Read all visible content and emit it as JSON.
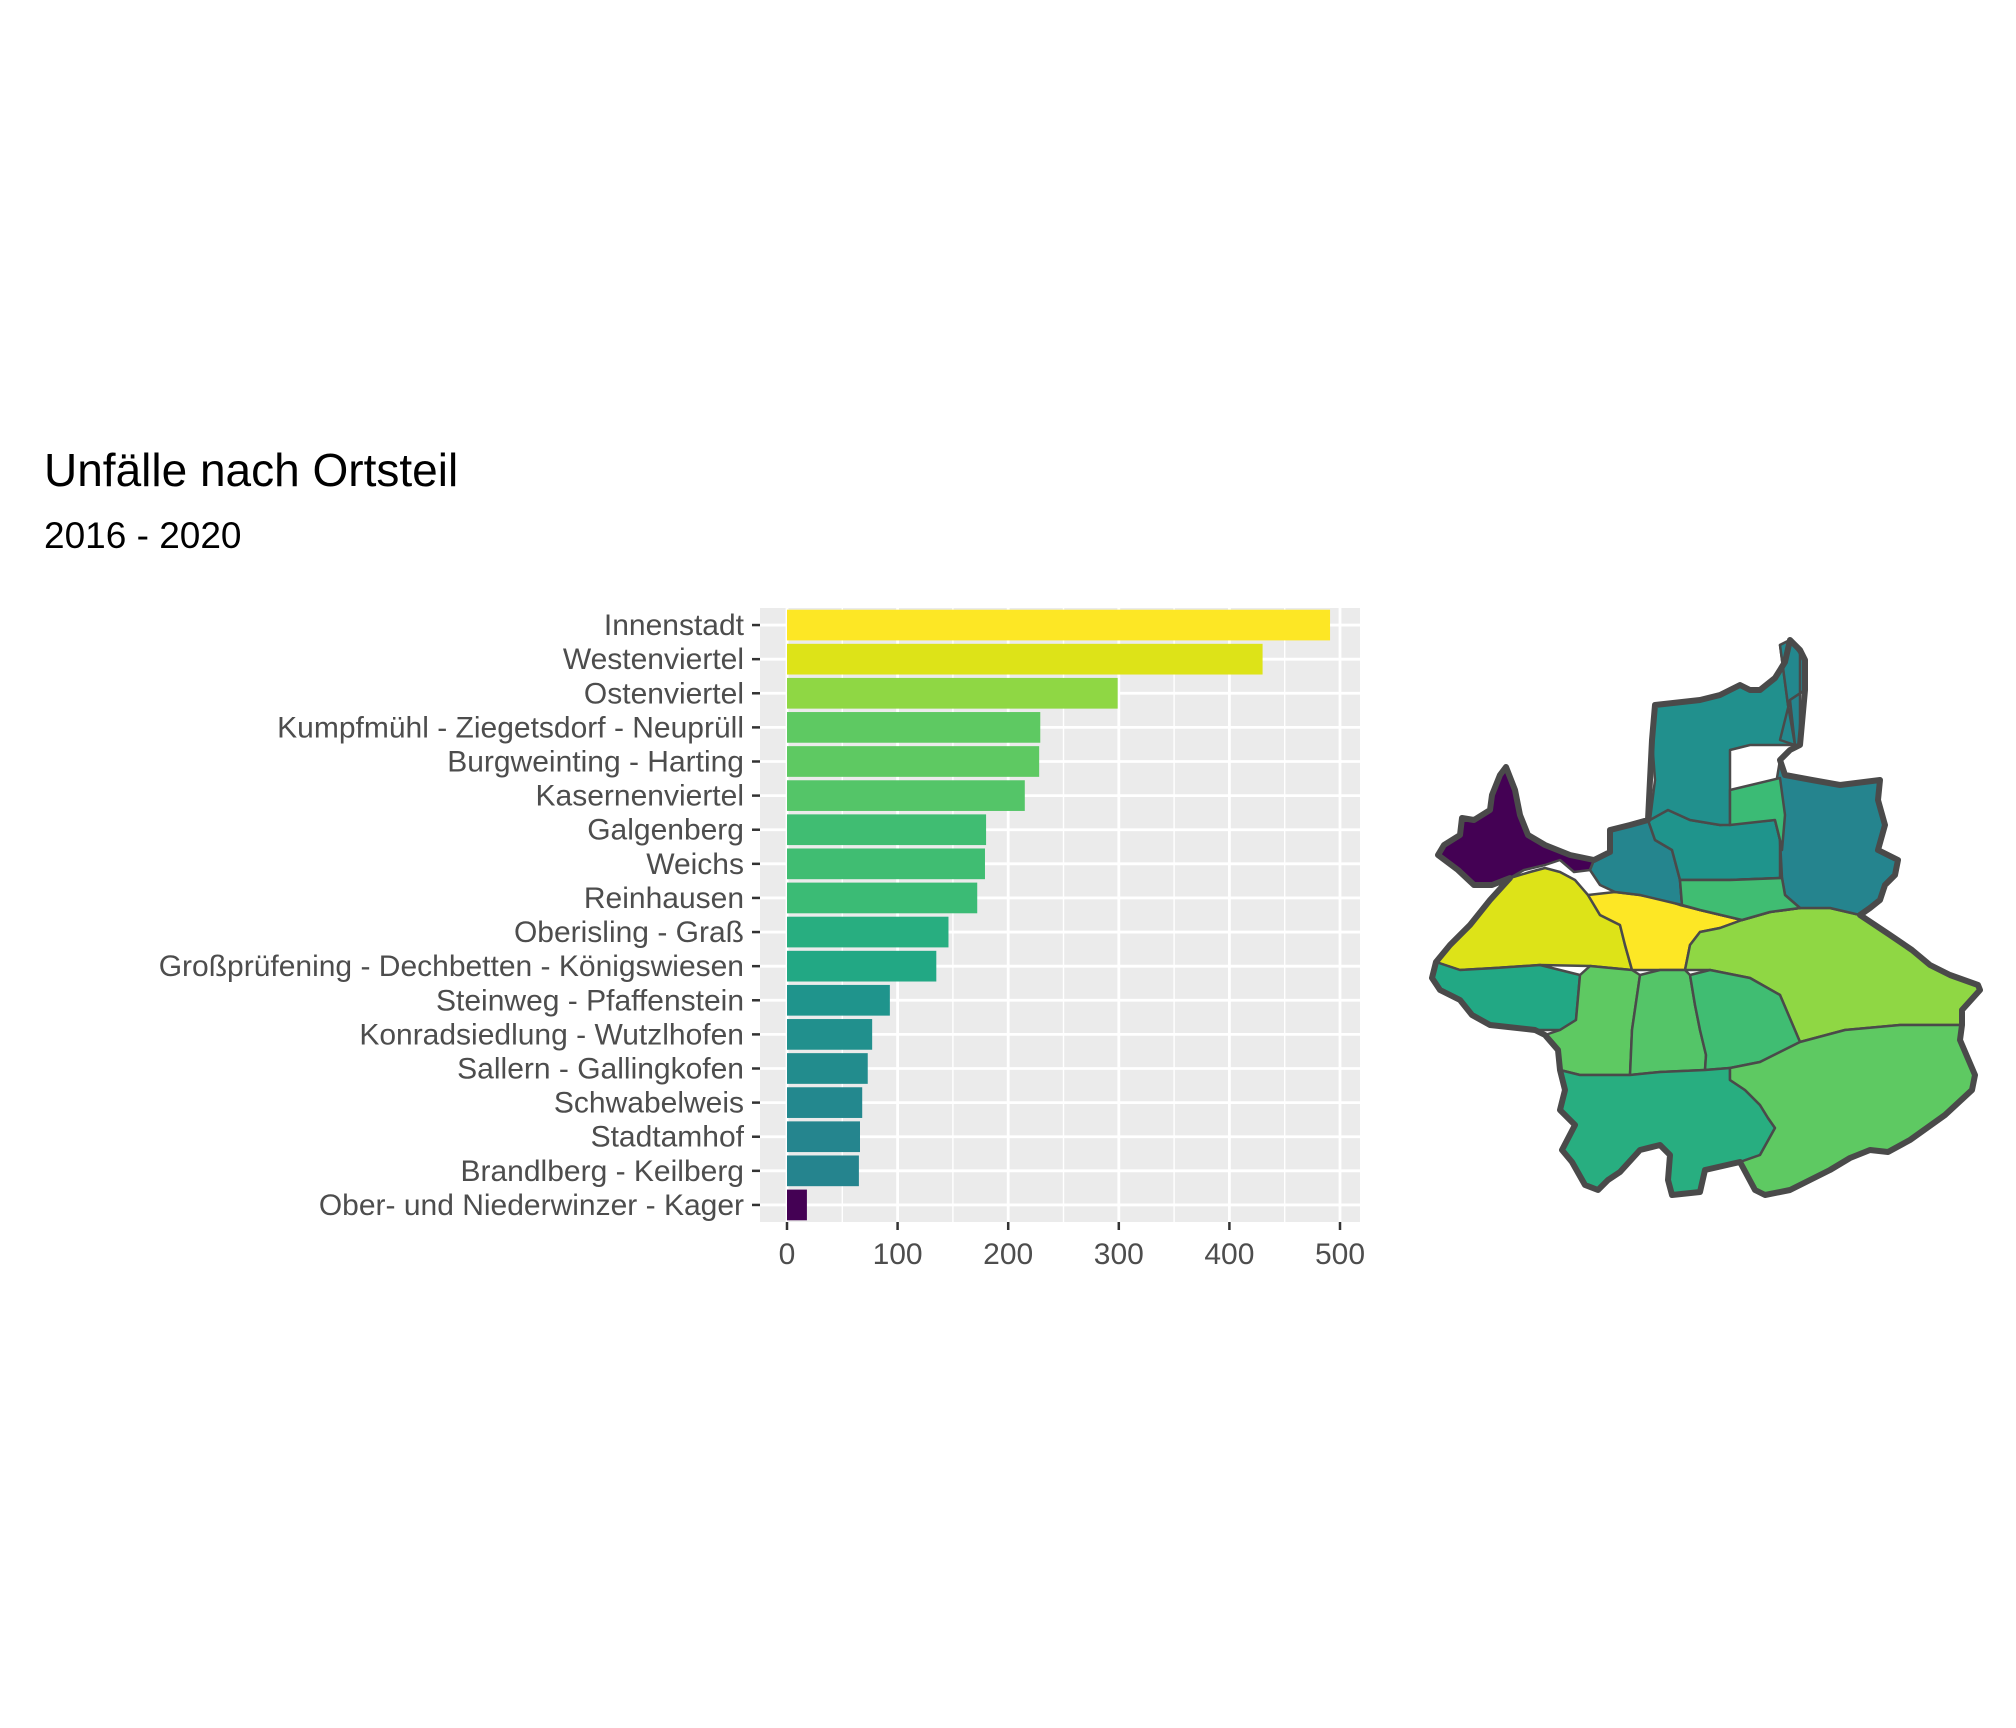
{
  "chart_data": {
    "type": "bar",
    "orientation": "horizontal",
    "title": "Unfälle nach Ortsteil",
    "subtitle": "2016 - 2020",
    "xlabel": "",
    "ylabel": "",
    "xlim": [
      0,
      510
    ],
    "x_ticks": [
      0,
      100,
      200,
      300,
      400,
      500
    ],
    "grid": true,
    "color_scale": "viridis",
    "categories": [
      "Innenstadt",
      "Westenviertel",
      "Ostenviertel",
      "Kumpfmühl - Ziegetsdorf - Neuprüll",
      "Burgweinting - Harting",
      "Kasernenviertel",
      "Galgenberg",
      "Weichs",
      "Reinhausen",
      "Oberisling - Graß",
      "Großprüfening - Dechbetten - Königswiesen",
      "Steinweg - Pfaffenstein",
      "Konradsiedlung - Wutzlhofen",
      "Sallern - Gallingkofen",
      "Schwabelweis",
      "Stadtamhof",
      "Brandlberg - Keilberg",
      "Ober- und Niederwinzer - Kager"
    ],
    "values": [
      491,
      430,
      299,
      229,
      228,
      215,
      180,
      179,
      172,
      146,
      135,
      93,
      77,
      73,
      68,
      66,
      65,
      18
    ],
    "colors": [
      "#fde725",
      "#dde318",
      "#8fd744",
      "#5ec962",
      "#5ec962",
      "#54c568",
      "#40bd72",
      "#40bd72",
      "#3bbb75",
      "#28ae80",
      "#22a884",
      "#1f948c",
      "#21908d",
      "#228c8d",
      "#23888e",
      "#25858e",
      "#25848e",
      "#440154"
    ]
  },
  "map": {
    "outline_color": "#4a4a4a",
    "regions": [
      {
        "name": "Ober- und Niederwinzer - Kager",
        "color": "#440154"
      },
      {
        "name": "Westenviertel",
        "color": "#dde318"
      },
      {
        "name": "Innenstadt",
        "color": "#fde725"
      },
      {
        "name": "Ostenviertel",
        "color": "#8fd744"
      },
      {
        "name": "Stadtamhof",
        "color": "#25858e"
      },
      {
        "name": "Steinweg - Pfaffenstein",
        "color": "#1f948c"
      },
      {
        "name": "Sallern - Gallingkofen",
        "color": "#228c8d"
      },
      {
        "name": "Konradsiedlung - Wutzlhofen",
        "color": "#21908d"
      },
      {
        "name": "Schwabelweis",
        "color": "#23888e"
      },
      {
        "name": "Brandlberg - Keilberg",
        "color": "#25848e"
      },
      {
        "name": "Reinhausen",
        "color": "#3bbb75"
      },
      {
        "name": "Weichs",
        "color": "#40bd72"
      },
      {
        "name": "Großprüfening - Dechbetten - Königswiesen",
        "color": "#22a884"
      },
      {
        "name": "Kumpfmühl - Ziegetsdorf - Neuprüll",
        "color": "#5ec962"
      },
      {
        "name": "Kasernenviertel",
        "color": "#54c568"
      },
      {
        "name": "Galgenberg",
        "color": "#40bd72"
      },
      {
        "name": "Oberisling - Graß",
        "color": "#28ae80"
      },
      {
        "name": "Burgweinting - Harting",
        "color": "#5ec962"
      }
    ]
  }
}
